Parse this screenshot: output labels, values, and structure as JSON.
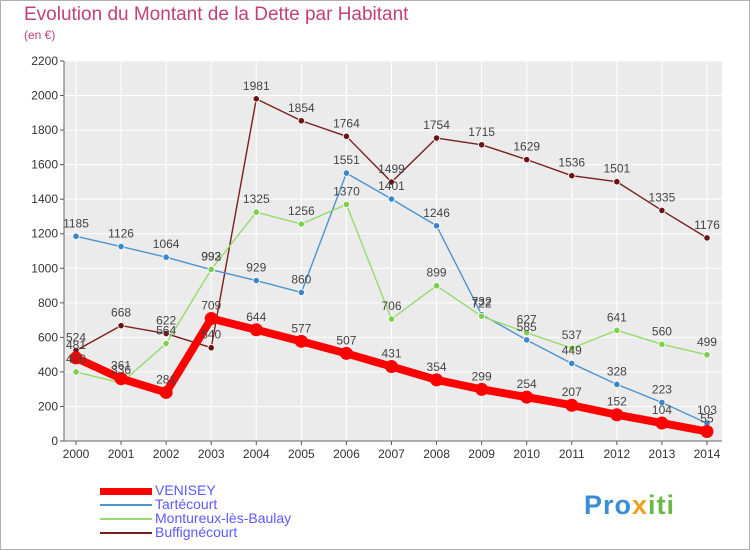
{
  "title": "Evolution du Montant de la Dette par Habitant",
  "subtitle": "(en €)",
  "brand": "Proxiti",
  "chart_data": {
    "type": "line",
    "x": [
      "2000",
      "2001",
      "2002",
      "2003",
      "2004",
      "2005",
      "2006",
      "2007",
      "2008",
      "2009",
      "2010",
      "2011",
      "2012",
      "2013",
      "2014"
    ],
    "ylim": [
      0,
      2200
    ],
    "yticks": [
      0,
      200,
      400,
      600,
      800,
      1000,
      1200,
      1400,
      1600,
      1800,
      2000,
      2200
    ],
    "grid": true,
    "legend_position": "bottom-left",
    "series": [
      {
        "name": "Buffignécourt",
        "color": "#7a1f1f",
        "marker_color": "#6b1414",
        "values": [
          524,
          668,
          622,
          540,
          1981,
          1854,
          1764,
          1499,
          1754,
          1715,
          1629,
          1536,
          1501,
          1335,
          1176
        ],
        "labels": [
          "524",
          "668",
          "622",
          "540",
          "1981",
          "1854",
          "1764",
          "1499",
          "1754",
          "1715",
          "1629",
          "1536",
          "1501",
          "1335",
          "1176"
        ]
      },
      {
        "name": "Tartécourt",
        "color": "#4a94d0",
        "marker_color": "#3a86c8",
        "values": [
          1185,
          1126,
          1064,
          992,
          929,
          860,
          1551,
          1401,
          1246,
          732,
          585,
          449,
          328,
          223,
          103
        ],
        "labels": [
          "1185",
          "1126",
          "1064",
          "992",
          "929",
          "860",
          "1551",
          "1401",
          "1246",
          "732",
          "585",
          "449",
          "328",
          "223",
          "103"
        ]
      },
      {
        "name": "Montureux-lès-Baulay",
        "color": "#96dc6a",
        "marker_color": "#7ccf4a",
        "values": [
          400,
          336,
          564,
          993,
          1325,
          1256,
          1370,
          706,
          899,
          722,
          627,
          537,
          641,
          560,
          499
        ],
        "labels": [
          "400",
          "336",
          "564",
          "993",
          "1325",
          "1256",
          "1370",
          "706",
          "899",
          "722",
          "627",
          "537",
          "641",
          "560",
          "499"
        ]
      },
      {
        "name": "VENISEY",
        "color": "#ff0000",
        "marker_color": "#ff0000",
        "values": [
          481,
          361,
          281,
          709,
          644,
          577,
          507,
          431,
          354,
          299,
          254,
          207,
          152,
          104,
          55
        ],
        "labels": [
          "481",
          "361",
          "281",
          "709",
          "644",
          "577",
          "507",
          "431",
          "354",
          "299",
          "254",
          "207",
          "152",
          "104",
          "55"
        ]
      }
    ],
    "legend_order": [
      "VENISEY",
      "Tartécourt",
      "Montureux-lès-Baulay",
      "Buffignécourt"
    ]
  }
}
